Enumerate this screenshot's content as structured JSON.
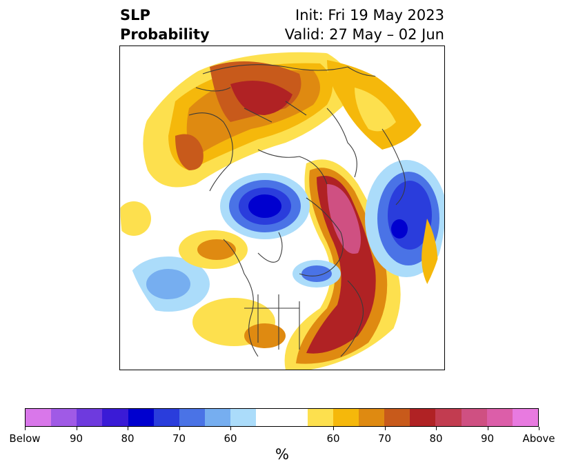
{
  "title": {
    "left_line1": "SLP",
    "left_line2": "Probability",
    "right_line1": "Init: Fri 19 May 2023",
    "right_line2": "Valid: 27 May – 02 Jun"
  },
  "colorbar": {
    "below_colors": [
      "#d977ea",
      "#a05ae6",
      "#6e3ade",
      "#3a1bd6",
      "#0000cf",
      "#2a3ddc",
      "#4a73e6",
      "#76aef0",
      "#abdcfa"
    ],
    "neutral_color": "#ffffff",
    "above_colors": [
      "#fde04e",
      "#f5b80b",
      "#df8a11",
      "#c85a1b",
      "#b02224",
      "#c23c50",
      "#cf5082",
      "#dc5ea9",
      "#e87ae0"
    ],
    "tick_labels": [
      "Below",
      "90",
      "80",
      "70",
      "60",
      "60",
      "70",
      "80",
      "90",
      "Above"
    ],
    "unit": "%"
  }
}
